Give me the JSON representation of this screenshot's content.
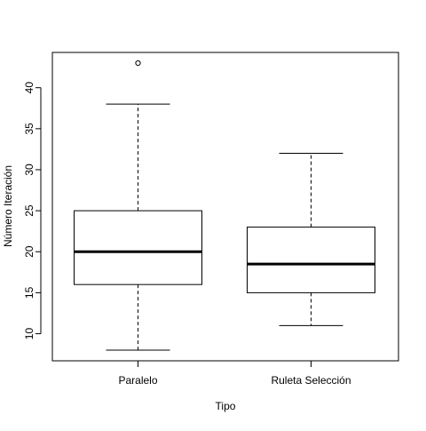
{
  "chart_data": {
    "type": "boxplot",
    "title": "",
    "xlabel": "Tipo",
    "ylabel": "Número Iteración",
    "ylim": [
      6.7,
      44.3
    ],
    "y_ticks": [
      10,
      15,
      20,
      25,
      30,
      35,
      40
    ],
    "categories": [
      "Paralelo",
      "Ruleta Selección"
    ],
    "boxes": [
      {
        "category": "Paralelo",
        "min": 8,
        "q1": 16,
        "median": 20,
        "q3": 25,
        "max": 38,
        "outliers": [
          43
        ]
      },
      {
        "category": "Ruleta Selección",
        "min": 11,
        "q1": 15,
        "median": 18.5,
        "q3": 23,
        "max": 32,
        "outliers": []
      }
    ],
    "grid": false,
    "legend": "none",
    "colors": {
      "box_fill": "#ffffff",
      "stroke": "#000000",
      "background": "#ffffff"
    }
  }
}
